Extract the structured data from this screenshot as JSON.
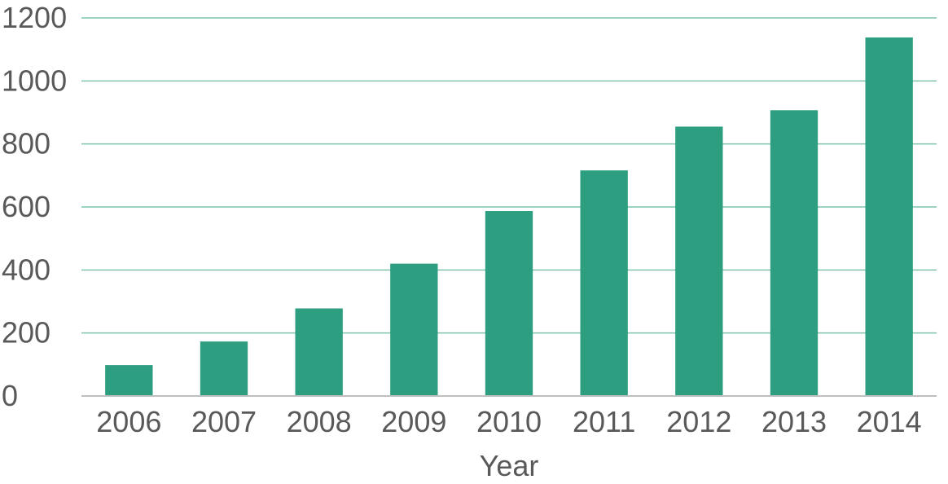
{
  "chart_data": {
    "type": "bar",
    "title": "",
    "xlabel": "Year",
    "ylabel": "",
    "categories": [
      "2006",
      "2007",
      "2008",
      "2009",
      "2010",
      "2011",
      "2012",
      "2013",
      "2014"
    ],
    "values": [
      98,
      173,
      278,
      420,
      587,
      716,
      855,
      907,
      1138
    ],
    "ylim": [
      0,
      1200
    ],
    "yticks": [
      0,
      200,
      400,
      600,
      800,
      1000,
      1200
    ],
    "grid": true,
    "legend": "none"
  },
  "colors": {
    "bar": "#2e9e80",
    "grid": "#7fc3ae",
    "axis": "#bfbfbf",
    "text": "#595959"
  }
}
